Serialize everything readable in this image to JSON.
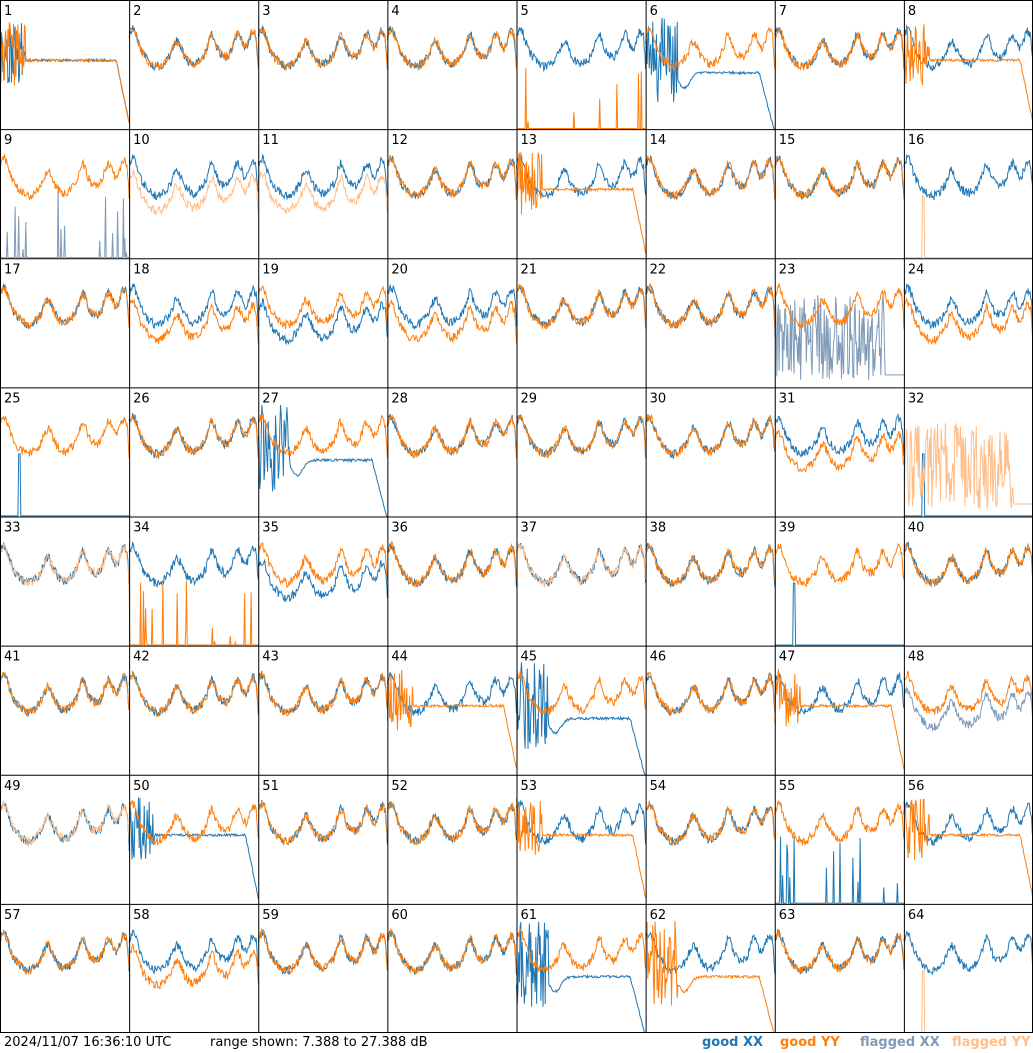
{
  "footer": {
    "timestamp": "2024/11/07 16:36:10 UTC",
    "range_text": "range shown: 7.388 to 27.388 dB"
  },
  "legend": {
    "good_xx": "good XX",
    "good_yy": "good YY",
    "flagged_xx": "flagged XX",
    "flagged_yy": "flagged YY"
  },
  "colors": {
    "good_xx": "#1f77b4",
    "good_yy": "#ff7f0e",
    "flagged_xx": "#7f9bb8",
    "flagged_yy": "#ffbe8a",
    "grid": "#000000"
  },
  "chart_data": {
    "type": "line",
    "y_unit": "dB",
    "ylim": [
      7.388,
      27.388
    ],
    "grid": true,
    "legend_placement": "bottom-right",
    "series": [
      "good XX",
      "good YY",
      "flagged XX",
      "flagged YY"
    ],
    "panels": [
      {
        "id": "1",
        "xx": "good",
        "yy": "good",
        "xx_shape": "noisy_then_plateau",
        "yy_shape": "noisy_then_plateau"
      },
      {
        "id": "2",
        "xx": "good",
        "yy": "good",
        "xx_shape": "typical",
        "yy_shape": "typical"
      },
      {
        "id": "3",
        "xx": "good",
        "yy": "good",
        "xx_shape": "typical",
        "yy_shape": "typical"
      },
      {
        "id": "4",
        "xx": "good",
        "yy": "good",
        "xx_shape": "typical",
        "yy_shape": "typical"
      },
      {
        "id": "5",
        "xx": "good",
        "yy": "good",
        "xx_shape": "typical",
        "yy_shape": "spikes_low"
      },
      {
        "id": "6",
        "xx": "good",
        "yy": "good",
        "xx_shape": "noisy_then_plateau_low",
        "yy_shape": "typical"
      },
      {
        "id": "7",
        "xx": "good",
        "yy": "good",
        "xx_shape": "typical",
        "yy_shape": "typical"
      },
      {
        "id": "8",
        "xx": "good",
        "yy": "good",
        "xx_shape": "typical",
        "yy_shape": "noisy_then_plateau"
      },
      {
        "id": "9",
        "xx": "flagged",
        "yy": "good",
        "xx_shape": "spikes_low",
        "yy_shape": "typical"
      },
      {
        "id": "10",
        "xx": "good",
        "yy": "flagged",
        "xx_shape": "typical",
        "yy_shape": "offset_low"
      },
      {
        "id": "11",
        "xx": "good",
        "yy": "flagged",
        "xx_shape": "typical",
        "yy_shape": "offset_low"
      },
      {
        "id": "12",
        "xx": "good",
        "yy": "good",
        "xx_shape": "typical",
        "yy_shape": "typical"
      },
      {
        "id": "13",
        "xx": "good",
        "yy": "good",
        "xx_shape": "typical",
        "yy_shape": "noisy_then_plateau"
      },
      {
        "id": "14",
        "xx": "good",
        "yy": "good",
        "xx_shape": "typical",
        "yy_shape": "typical"
      },
      {
        "id": "15",
        "xx": "good",
        "yy": "good",
        "xx_shape": "typical",
        "yy_shape": "typical"
      },
      {
        "id": "16",
        "xx": "good",
        "yy": "flagged",
        "xx_shape": "typical",
        "yy_shape": "spike_single"
      },
      {
        "id": "17",
        "xx": "good",
        "yy": "good",
        "xx_shape": "typical",
        "yy_shape": "typical"
      },
      {
        "id": "18",
        "xx": "good",
        "yy": "good",
        "xx_shape": "typical",
        "yy_shape": "offset_low"
      },
      {
        "id": "19",
        "xx": "good",
        "yy": "good",
        "xx_shape": "offset_low",
        "yy_shape": "typical"
      },
      {
        "id": "20",
        "xx": "good",
        "yy": "good",
        "xx_shape": "typical",
        "yy_shape": "offset_low"
      },
      {
        "id": "21",
        "xx": "good",
        "yy": "good",
        "xx_shape": "typical",
        "yy_shape": "typical"
      },
      {
        "id": "22",
        "xx": "good",
        "yy": "good",
        "xx_shape": "typical",
        "yy_shape": "typical"
      },
      {
        "id": "23",
        "xx": "flagged",
        "yy": "good",
        "xx_shape": "wild_noise",
        "yy_shape": "typical"
      },
      {
        "id": "24",
        "xx": "good",
        "yy": "good",
        "xx_shape": "typical",
        "yy_shape": "offset_low"
      },
      {
        "id": "25",
        "xx": "good",
        "yy": "good",
        "xx_shape": "spike_single",
        "yy_shape": "typical"
      },
      {
        "id": "26",
        "xx": "good",
        "yy": "good",
        "xx_shape": "typical",
        "yy_shape": "typical"
      },
      {
        "id": "27",
        "xx": "good",
        "yy": "good",
        "xx_shape": "noisy_then_plateau_low",
        "yy_shape": "typical"
      },
      {
        "id": "28",
        "xx": "good",
        "yy": "good",
        "xx_shape": "typical",
        "yy_shape": "typical"
      },
      {
        "id": "29",
        "xx": "good",
        "yy": "good",
        "xx_shape": "typical",
        "yy_shape": "typical"
      },
      {
        "id": "30",
        "xx": "good",
        "yy": "good",
        "xx_shape": "typical",
        "yy_shape": "typical"
      },
      {
        "id": "31",
        "xx": "good",
        "yy": "good",
        "xx_shape": "typical",
        "yy_shape": "offset_low"
      },
      {
        "id": "32",
        "xx": "good",
        "yy": "flagged",
        "xx_shape": "spike_single",
        "yy_shape": "wild_noise"
      },
      {
        "id": "33",
        "xx": "good",
        "yy": "flagged",
        "xx_shape": "typical",
        "yy_shape": "typical"
      },
      {
        "id": "34",
        "xx": "good",
        "yy": "good",
        "xx_shape": "typical",
        "yy_shape": "spikes_low"
      },
      {
        "id": "35",
        "xx": "good",
        "yy": "good",
        "xx_shape": "offset_low",
        "yy_shape": "typical"
      },
      {
        "id": "36",
        "xx": "good",
        "yy": "good",
        "xx_shape": "typical",
        "yy_shape": "typical"
      },
      {
        "id": "37",
        "xx": "good",
        "yy": "flagged",
        "xx_shape": "typical",
        "yy_shape": "typical"
      },
      {
        "id": "38",
        "xx": "good",
        "yy": "good",
        "xx_shape": "typical",
        "yy_shape": "typical"
      },
      {
        "id": "39",
        "xx": "good",
        "yy": "good",
        "xx_shape": "spike_single",
        "yy_shape": "typical"
      },
      {
        "id": "40",
        "xx": "good",
        "yy": "good",
        "xx_shape": "typical",
        "yy_shape": "typical"
      },
      {
        "id": "41",
        "xx": "good",
        "yy": "good",
        "xx_shape": "typical",
        "yy_shape": "typical"
      },
      {
        "id": "42",
        "xx": "good",
        "yy": "good",
        "xx_shape": "typical",
        "yy_shape": "typical"
      },
      {
        "id": "43",
        "xx": "good",
        "yy": "good",
        "xx_shape": "typical",
        "yy_shape": "typical"
      },
      {
        "id": "44",
        "xx": "good",
        "yy": "good",
        "xx_shape": "typical",
        "yy_shape": "noisy_then_plateau"
      },
      {
        "id": "45",
        "xx": "good",
        "yy": "good",
        "xx_shape": "noisy_then_plateau_low",
        "yy_shape": "typical"
      },
      {
        "id": "46",
        "xx": "good",
        "yy": "good",
        "xx_shape": "typical",
        "yy_shape": "typical"
      },
      {
        "id": "47",
        "xx": "good",
        "yy": "good",
        "xx_shape": "typical",
        "yy_shape": "noisy_then_plateau"
      },
      {
        "id": "48",
        "xx": "flagged",
        "yy": "good",
        "xx_shape": "offset_low",
        "yy_shape": "typical"
      },
      {
        "id": "49",
        "xx": "good",
        "yy": "flagged",
        "xx_shape": "typical",
        "yy_shape": "typical"
      },
      {
        "id": "50",
        "xx": "good",
        "yy": "good",
        "xx_shape": "noisy_then_plateau",
        "yy_shape": "typical"
      },
      {
        "id": "51",
        "xx": "good",
        "yy": "good",
        "xx_shape": "typical",
        "yy_shape": "typical"
      },
      {
        "id": "52",
        "xx": "good",
        "yy": "good",
        "xx_shape": "typical",
        "yy_shape": "typical"
      },
      {
        "id": "53",
        "xx": "good",
        "yy": "good",
        "xx_shape": "typical",
        "yy_shape": "noisy_then_plateau"
      },
      {
        "id": "54",
        "xx": "good",
        "yy": "good",
        "xx_shape": "typical",
        "yy_shape": "typical"
      },
      {
        "id": "55",
        "xx": "good",
        "yy": "good",
        "xx_shape": "spikes_low",
        "yy_shape": "typical"
      },
      {
        "id": "56",
        "xx": "good",
        "yy": "good",
        "xx_shape": "typical",
        "yy_shape": "noisy_then_plateau"
      },
      {
        "id": "57",
        "xx": "good",
        "yy": "good",
        "xx_shape": "typical",
        "yy_shape": "typical"
      },
      {
        "id": "58",
        "xx": "good",
        "yy": "good",
        "xx_shape": "typical",
        "yy_shape": "offset_low"
      },
      {
        "id": "59",
        "xx": "good",
        "yy": "good",
        "xx_shape": "typical",
        "yy_shape": "typical"
      },
      {
        "id": "60",
        "xx": "good",
        "yy": "good",
        "xx_shape": "typical",
        "yy_shape": "typical"
      },
      {
        "id": "61",
        "xx": "good",
        "yy": "good",
        "xx_shape": "noisy_then_plateau_low",
        "yy_shape": "typical"
      },
      {
        "id": "62",
        "xx": "good",
        "yy": "good",
        "xx_shape": "typical",
        "yy_shape": "noisy_then_plateau_low"
      },
      {
        "id": "63",
        "xx": "good",
        "yy": "good",
        "xx_shape": "typical",
        "yy_shape": "typical"
      },
      {
        "id": "64",
        "xx": "good",
        "yy": "flagged",
        "xx_shape": "typical",
        "yy_shape": "spike_single"
      }
    ]
  }
}
